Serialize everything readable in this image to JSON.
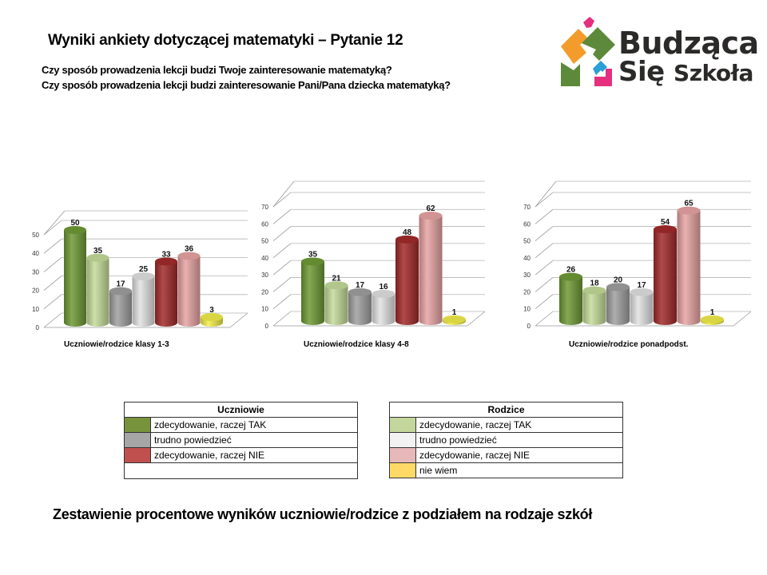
{
  "header": {
    "title": "Wyniki ankiety dotyczącej matematyki – Pytanie 12",
    "question_students": "Czy sposób prowadzenia lekcji budzi Twoje zainteresowanie matematyką?",
    "question_parents": "Czy sposób prowadzenia lekcji budzi zainteresowanie Pani/Pana dziecka matematyką?"
  },
  "logo": {
    "line1": "Budząca",
    "line2a": "Się",
    "line2b": "Szkoła",
    "colors": {
      "orange": "#f39c2b",
      "green": "#5c8a3a",
      "pink": "#e5307e",
      "blue": "#2a9fd8"
    }
  },
  "series_colors": [
    "#6e9a35",
    "#c5dc9a",
    "#a0a0a0",
    "#e2e2e2",
    "#a32a2a",
    "#e8a3a3",
    "#f2ee4a"
  ],
  "chart_data": [
    {
      "type": "bar",
      "title": "Uczniowie/rodzice klasy 1-3",
      "categories": [
        "Uczniowie: zdecydowanie, raczej TAK",
        "Rodzice: zdecydowanie, raczej TAK",
        "Uczniowie: trudno powiedzieć",
        "Rodzice: trudno powiedzieć",
        "Uczniowie: zdecydowanie, raczej NIE",
        "Rodzice: zdecydowanie, raczej NIE",
        "Rodzice: nie wiem"
      ],
      "values": [
        50,
        35,
        17,
        25,
        33,
        36,
        3
      ],
      "labels": [
        "50",
        "35",
        "17",
        "25",
        "33",
        "36",
        "3"
      ],
      "yticks": [
        "0",
        "10",
        "20",
        "30",
        "40",
        "50"
      ],
      "ylim": [
        0,
        50
      ],
      "xlabel": "",
      "ylabel": "",
      "grid": true
    },
    {
      "type": "bar",
      "title": "Uczniowie/rodzice klasy 4-8",
      "categories": [
        "Uczniowie: zdecydowanie, raczej TAK",
        "Rodzice: zdecydowanie, raczej TAK",
        "Uczniowie: trudno powiedzieć",
        "Rodzice: trudno powiedzieć",
        "Uczniowie: zdecydowanie, raczej NIE",
        "Rodzice: zdecydowanie, raczej NIE",
        "Rodzice: nie wiem"
      ],
      "values": [
        35,
        21,
        17,
        16,
        48,
        62,
        1
      ],
      "labels": [
        "35",
        "21",
        "17",
        "16",
        "48",
        "62",
        "1"
      ],
      "yticks": [
        "0",
        "10",
        "20",
        "30",
        "40",
        "50",
        "60",
        "70"
      ],
      "ylim": [
        0,
        70
      ],
      "xlabel": "",
      "ylabel": "",
      "grid": true
    },
    {
      "type": "bar",
      "title": "Uczniowie/rodzice ponadpodst.",
      "categories": [
        "Uczniowie: zdecydowanie, raczej TAK",
        "Rodzice: zdecydowanie, raczej TAK",
        "Uczniowie: trudno powiedzieć",
        "Rodzice: trudno powiedzieć",
        "Uczniowie: zdecydowanie, raczej NIE",
        "Rodzice: zdecydowanie, raczej NIE",
        "Rodzice: nie wiem"
      ],
      "values": [
        26,
        18,
        20,
        17,
        54,
        65,
        1
      ],
      "labels": [
        "26",
        "18",
        "20",
        "17",
        "54",
        "65",
        "1"
      ],
      "yticks": [
        "0",
        "10",
        "20",
        "30",
        "40",
        "50",
        "60",
        "70"
      ],
      "ylim": [
        0,
        70
      ],
      "xlabel": "",
      "ylabel": "",
      "grid": true
    }
  ],
  "legend": {
    "students": {
      "header": "Uczniowie",
      "items": [
        {
          "label": "zdecydowanie, raczej TAK",
          "color": "#77933c"
        },
        {
          "label": "trudno powiedzieć",
          "color": "#a6a6a6"
        },
        {
          "label": "zdecydowanie, raczej NIE",
          "color": "#c0504d"
        }
      ]
    },
    "parents": {
      "header": "Rodzice",
      "items": [
        {
          "label": "zdecydowanie, raczej TAK",
          "color": "#c3d69b"
        },
        {
          "label": "trudno powiedzieć",
          "color": "#f2f2f2"
        },
        {
          "label": "zdecydowanie, raczej NIE",
          "color": "#e6b9b8"
        },
        {
          "label": "nie wiem",
          "color": "#ffd966"
        }
      ]
    }
  },
  "footer": {
    "caption": "Zestawienie procentowe wyników uczniowie/rodzice z podziałem na rodzaje szkół"
  }
}
